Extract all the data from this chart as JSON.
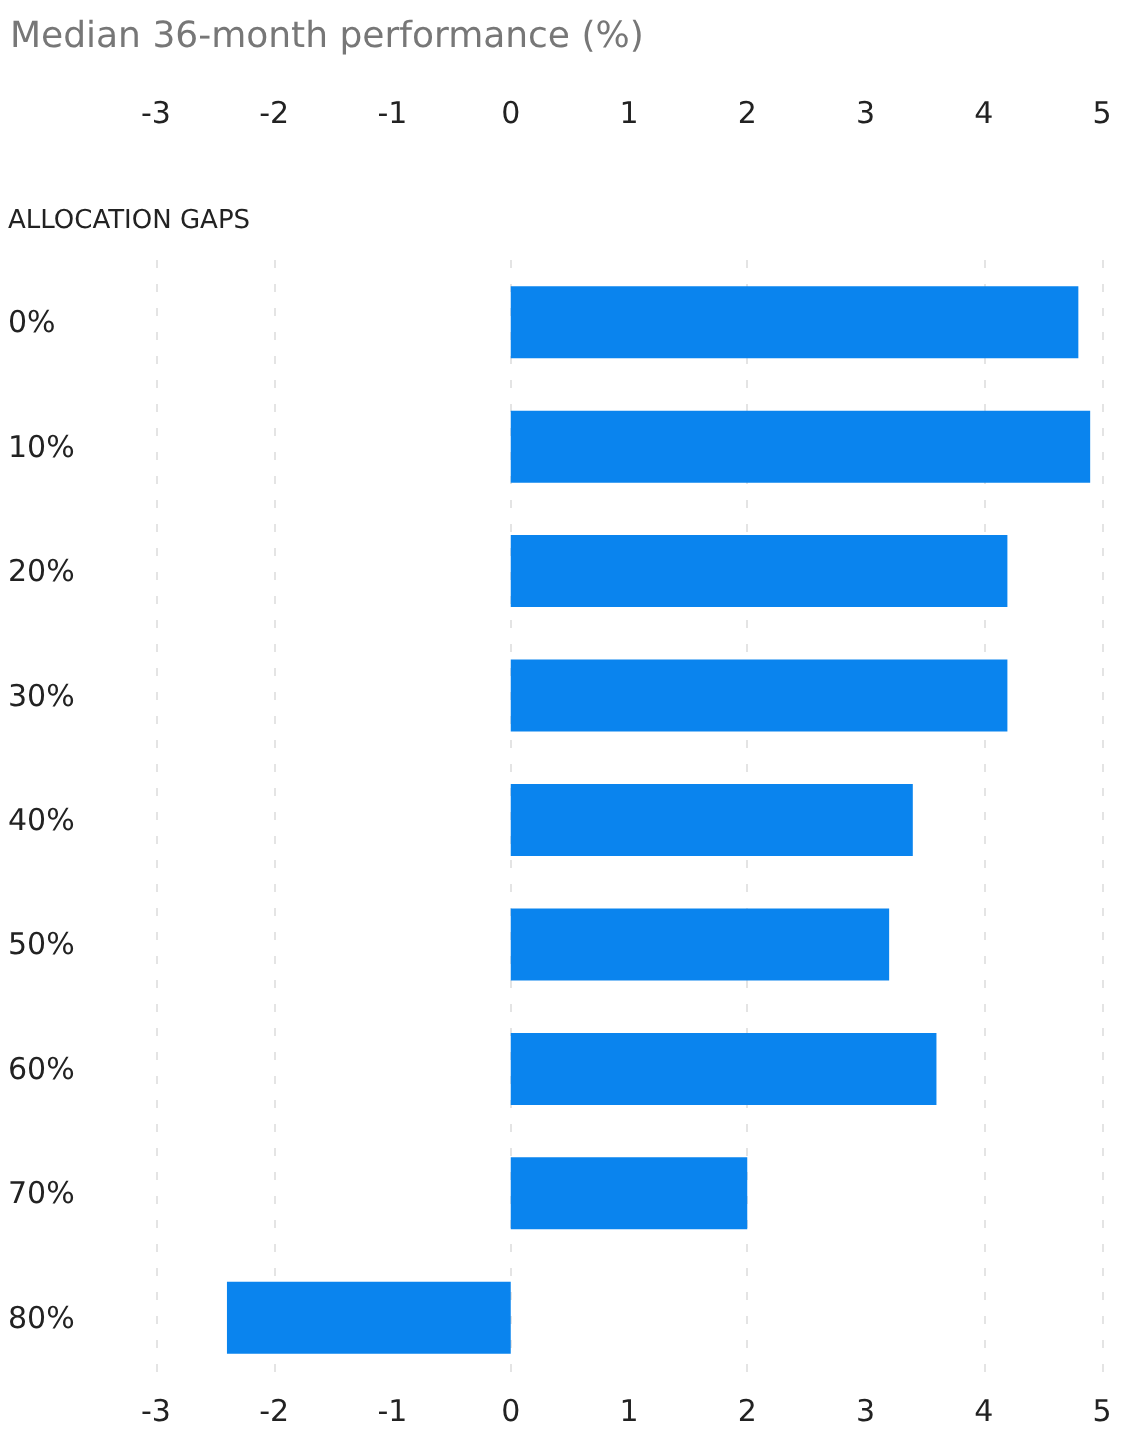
{
  "chart_data": {
    "type": "bar",
    "orientation": "horizontal",
    "title": "Median 36-month performance (%)",
    "ylabel": "ALLOCATION GAPS",
    "categories": [
      "0%",
      "10%",
      "20%",
      "30%",
      "40%",
      "50%",
      "60%",
      "70%",
      "80%"
    ],
    "values": [
      4.8,
      4.9,
      4.2,
      4.2,
      3.4,
      3.2,
      3.6,
      2.0,
      -2.4
    ],
    "color": "#0a84ee",
    "xlim": [
      -3,
      5
    ],
    "xticks": [
      -3,
      -2,
      -1,
      0,
      1,
      2,
      3,
      4,
      5
    ],
    "x2lim": [
      -3,
      5
    ],
    "x2ticks": [
      -3,
      -2,
      -1,
      0,
      1,
      2,
      3,
      4,
      5
    ],
    "grid": true
  }
}
